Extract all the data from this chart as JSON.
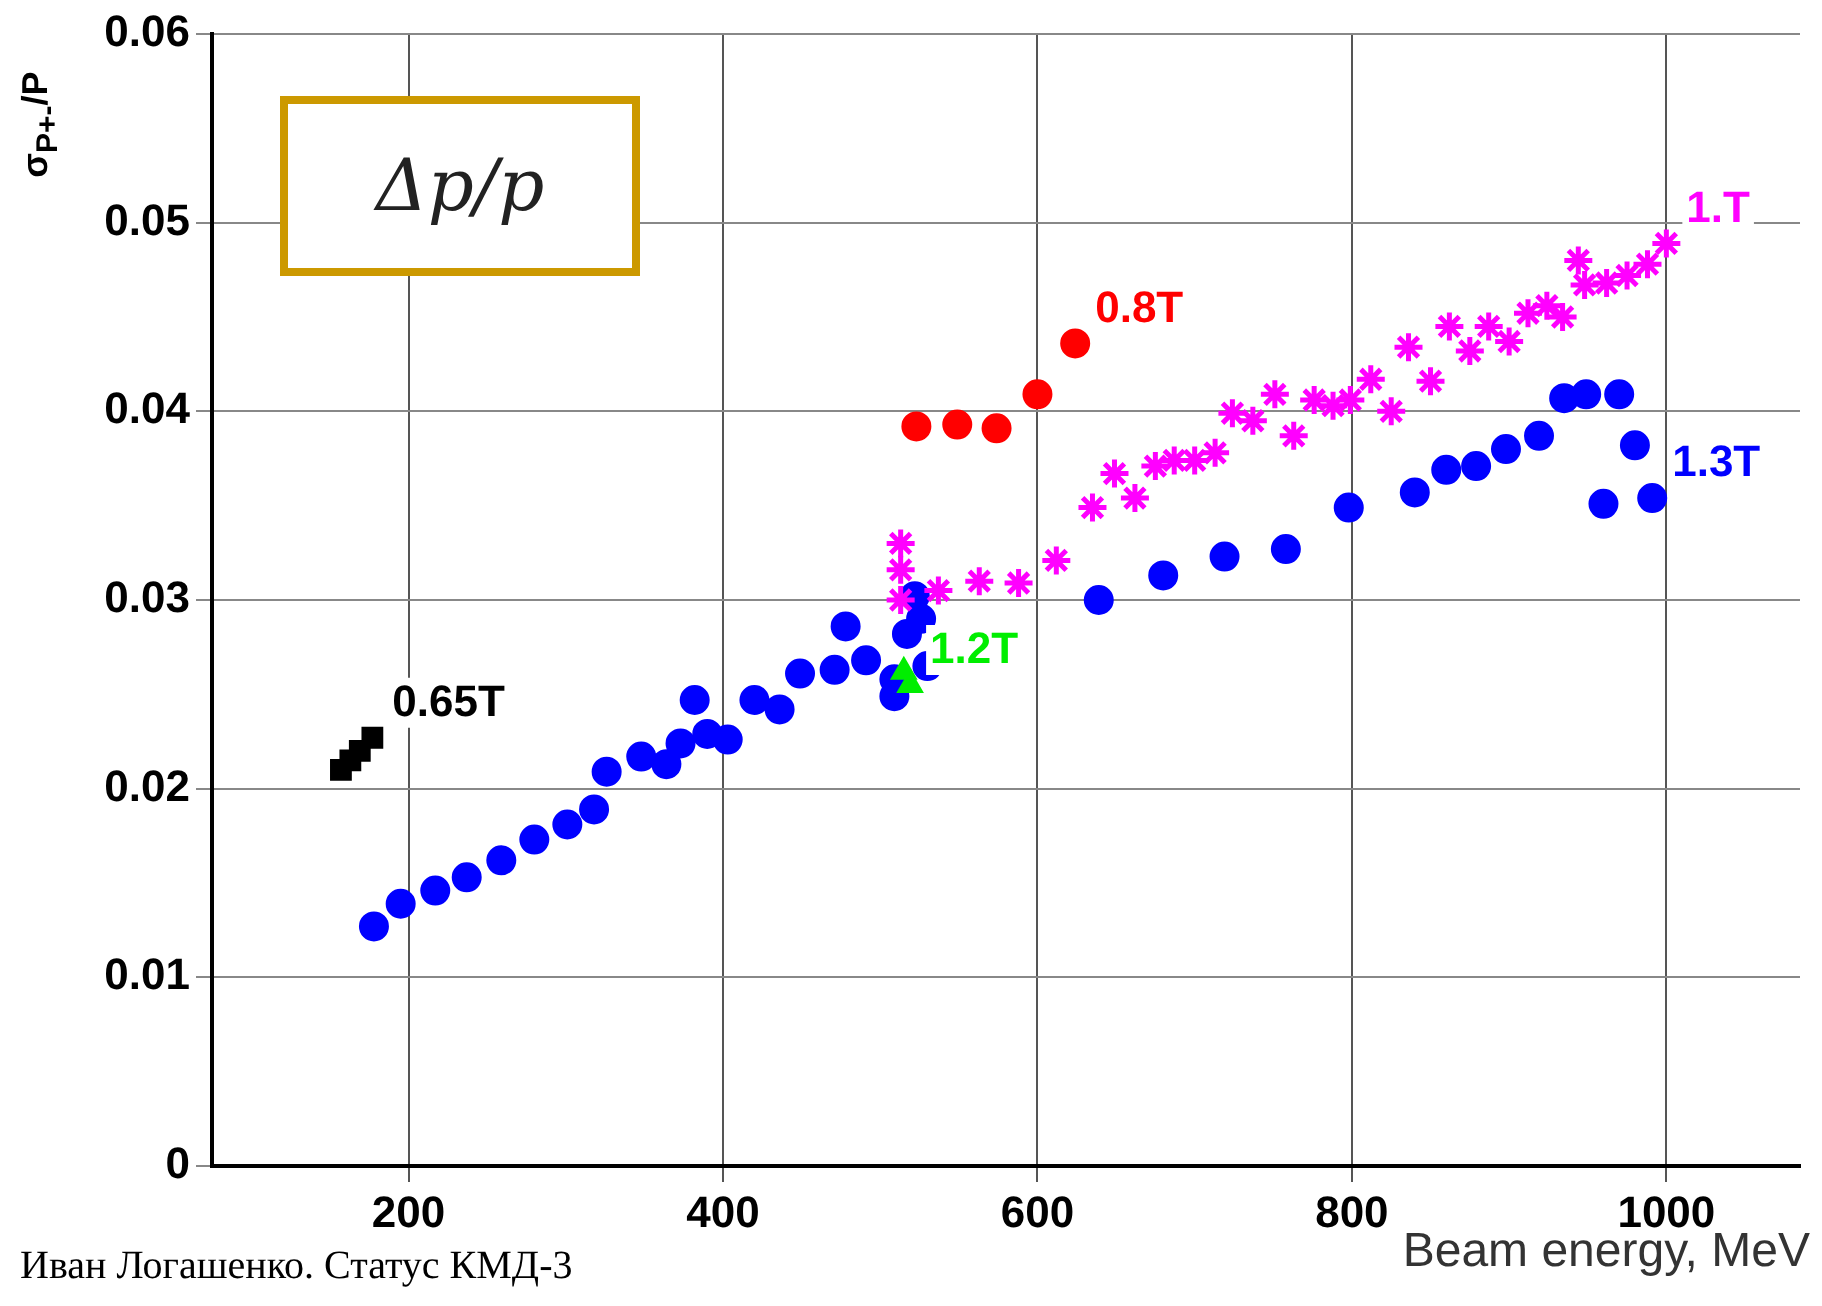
{
  "chart_data": {
    "type": "scatter",
    "xlabel": "Beam energy, MeV",
    "ylabel": "σ$_{P+-}$/P",
    "annotations": [
      "Δp/p",
      "Иван Логашенко. Статус КМД-3"
    ],
    "xlim": [
      75,
      1085
    ],
    "xticks": [
      200,
      400,
      600,
      800,
      1000
    ],
    "ylim": [
      0,
      0.06
    ],
    "yticks": [
      0,
      0.01,
      0.02,
      0.03,
      0.04,
      0.05,
      0.06
    ],
    "grid": true,
    "legend": false,
    "series": [
      {
        "name": "0.65T",
        "color": "#000000",
        "marker": "square",
        "x": [
          157,
          163,
          169,
          177
        ],
        "values": [
          0.021,
          0.0215,
          0.022,
          0.0227
        ]
      },
      {
        "name": "1.3T",
        "color": "#0000ff",
        "marker": "circle",
        "x": [
          178,
          195,
          217,
          237,
          259,
          280,
          301,
          318,
          326,
          348,
          364,
          373,
          382,
          390,
          403,
          420,
          436,
          449,
          471,
          478,
          491,
          509,
          509,
          517,
          522,
          526,
          530,
          639,
          680,
          719,
          758,
          798,
          840,
          860,
          879,
          898,
          919,
          935,
          949,
          970,
          980,
          960,
          991
        ],
        "values": [
          0.0127,
          0.0139,
          0.0146,
          0.0153,
          0.0162,
          0.0173,
          0.0181,
          0.0189,
          0.0209,
          0.0217,
          0.0213,
          0.0224,
          0.0247,
          0.0229,
          0.0226,
          0.0247,
          0.0242,
          0.0261,
          0.0263,
          0.0286,
          0.0268,
          0.0258,
          0.0249,
          0.0282,
          0.0302,
          0.029,
          0.0265,
          0.03,
          0.0313,
          0.0323,
          0.0327,
          0.0349,
          0.0357,
          0.0369,
          0.0371,
          0.038,
          0.0387,
          0.0407,
          0.0409,
          0.0409,
          0.0382,
          0.0351,
          0.0354
        ]
      },
      {
        "name": "1.2T",
        "color": "#00ee00",
        "marker": "triangle",
        "x": [
          515,
          519
        ],
        "values": [
          0.0262,
          0.0255
        ]
      },
      {
        "name": "1.T",
        "color": "#ff00ff",
        "marker": "cross",
        "x": [
          513,
          513,
          513,
          537,
          563,
          588,
          612,
          635,
          649,
          662,
          675,
          687,
          700,
          713,
          724,
          737,
          751,
          763,
          776,
          788,
          799,
          812,
          825,
          836,
          850,
          862,
          875,
          887,
          900,
          912,
          924,
          934,
          944,
          948,
          962,
          975,
          988,
          1000
        ],
        "values": [
          0.03,
          0.0316,
          0.033,
          0.0305,
          0.031,
          0.0309,
          0.0321,
          0.0349,
          0.0367,
          0.0354,
          0.0371,
          0.0374,
          0.0374,
          0.0378,
          0.0399,
          0.0395,
          0.0409,
          0.0387,
          0.0406,
          0.0403,
          0.0406,
          0.0417,
          0.04,
          0.0434,
          0.0416,
          0.0445,
          0.0432,
          0.0445,
          0.0437,
          0.0452,
          0.0456,
          0.045,
          0.048,
          0.0467,
          0.0468,
          0.0472,
          0.0478,
          0.0489
        ]
      },
      {
        "name": "0.8T",
        "color": "#ff0000",
        "marker": "circle",
        "x": [
          523,
          549,
          574,
          600,
          624
        ],
        "values": [
          0.0392,
          0.0393,
          0.0391,
          0.0409,
          0.0436
        ]
      }
    ]
  }
}
